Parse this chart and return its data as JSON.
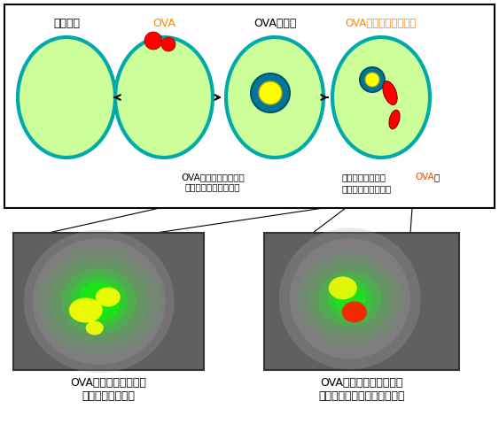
{
  "background_color": "#ffffff",
  "cell_fill": "#ccff99",
  "cell_border": "#00aaaa",
  "label1": "樹状細胞",
  "label2": "OVA",
  "label3": "OVAの貪食",
  "label4": "OVAの細胞質への移行",
  "label2_color": "#ff8800",
  "label4_color": "#ff8800",
  "note1": "OVAはエンドソーム内\nにあり黄色に見える。",
  "note2_part1": "細胞質へ出て来た",
  "note2_ova": "OVA",
  "note2_part2": "は\n再び赤色に見える。",
  "note_ova_color": "#ff4400",
  "caption1": "OVAがエンドソーム内\nにある場合の写真",
  "caption2": "OVAがエンドソームから\n細胞質へ移動した場合の写真"
}
